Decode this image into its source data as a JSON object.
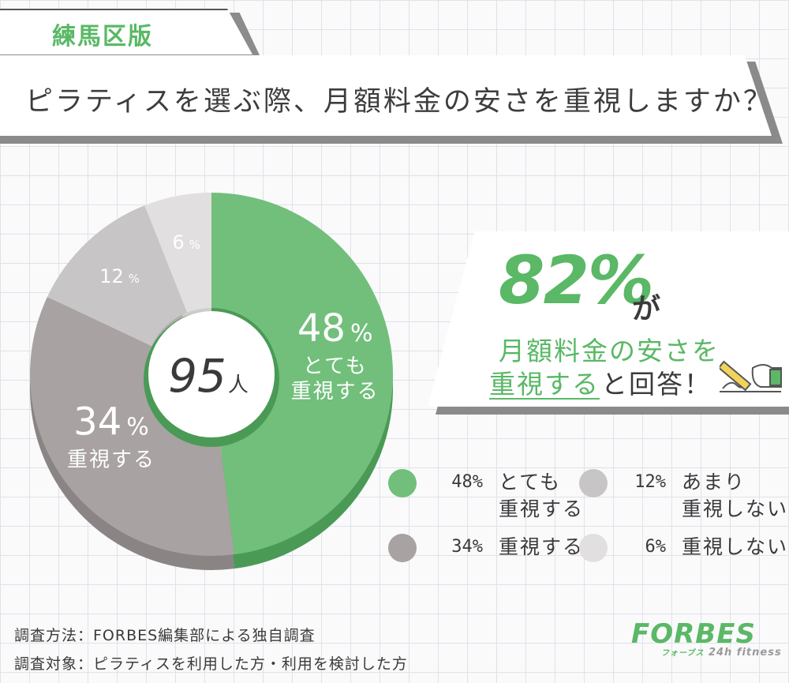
{
  "region_tag": "練馬区版",
  "question": "ピラティスを選ぶ際、月額料金の安さを重視しますか？",
  "chart_data": {
    "type": "pie",
    "center_value": "95",
    "center_unit": "人",
    "slices": [
      {
        "label": "とても重視する",
        "label_lines": [
          "とても",
          "重視する"
        ],
        "value": 48,
        "pct_text": "48",
        "color": "#71bf7b",
        "shade": "#4a9a56",
        "text_color": "#ffffff"
      },
      {
        "label": "重視する",
        "label_lines": [
          "重視する"
        ],
        "value": 34,
        "pct_text": "34",
        "color": "#a8a2a2",
        "shade": "#8a8484",
        "text_color": "#ffffff"
      },
      {
        "label": "あまり重視しない",
        "label_lines": [],
        "value": 12,
        "pct_text": "12",
        "color": "#c8c5c6",
        "shade": "#b0adae",
        "text_color": "#ffffff"
      },
      {
        "label": "重視しない",
        "label_lines": [],
        "value": 6,
        "pct_text": "6",
        "color": "#e1dfe0",
        "shade": "#cfcccd",
        "text_color": "#ffffff"
      }
    ]
  },
  "callout": {
    "big": "82%",
    "ga": "が",
    "line1": "月額料金の安さを",
    "line2_highlight": "重視する",
    "line2_rest": "と回答！"
  },
  "legend": [
    {
      "pct": "48%",
      "label": "とても重視する",
      "lines": [
        "とても",
        "重視する"
      ],
      "color": "#71bf7b"
    },
    {
      "pct": "12%",
      "label": "あまり重視しない",
      "lines": [
        "あまり",
        "重視しない"
      ],
      "color": "#c8c5c6"
    },
    {
      "pct": "34%",
      "label": "重視する",
      "lines": [
        "重視する"
      ],
      "color": "#a8a2a2"
    },
    {
      "pct": "6%",
      "label": "重視しない",
      "lines": [
        "重視しない"
      ],
      "color": "#e1dfe0"
    }
  ],
  "footnotes": {
    "method": "調査方法：FORBES編集部による独自調査",
    "target": "調査対象：ピラティスを利用した方・利用を検討した方"
  },
  "logo": {
    "main": "FORBES",
    "kana": "フォーブス",
    "sub": "24h fitness"
  },
  "icons": {
    "pencil": "pencil-hand-icon"
  }
}
